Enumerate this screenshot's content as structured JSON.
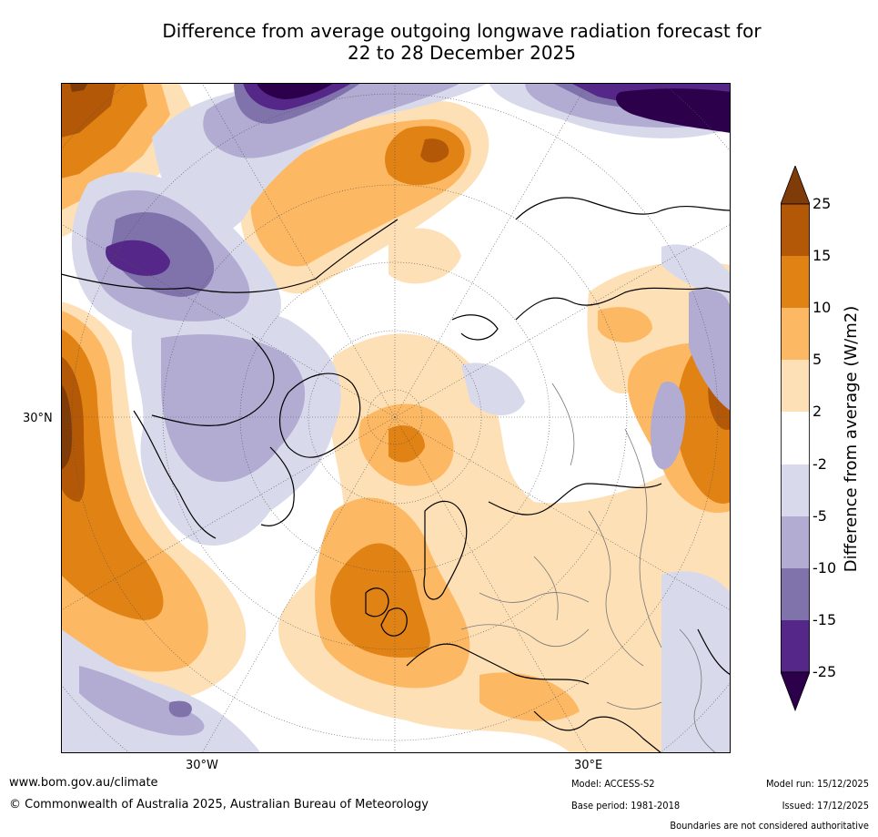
{
  "title_line1": "Difference from average outgoing longwave radiation forecast for",
  "title_line2": "22 to 28 December 2025",
  "map": {
    "labels": {
      "lat_30n": "30°N",
      "lon_30w": "30°W",
      "lon_30e": "30°E"
    }
  },
  "colorbar": {
    "label": "Difference from average (W/m2)",
    "ticks": [
      "25",
      "15",
      "10",
      "5",
      "2",
      "-2",
      "-5",
      "-10",
      "-15",
      "-25"
    ],
    "colors": {
      "over": "#7f3b08",
      "b15_25": "#b35806",
      "b10_15": "#e08214",
      "b5_10": "#fdb863",
      "b2_5": "#fee0b6",
      "neutral": "#ffffff",
      "m2_m5": "#d8daeb",
      "m5_m10": "#b2abd2",
      "m10_m15": "#8073ac",
      "m15_m25": "#542788",
      "under": "#2d004b"
    }
  },
  "footer": {
    "website": "www.bom.gov.au/climate",
    "copyright": "© Commonwealth of Australia 2025, Australian Bureau of Meteorology",
    "model": "Model: ACCESS-S2",
    "base_period": "Base period: 1981-2018",
    "model_run": "Model run: 15/12/2025",
    "issued": "Issued: 17/12/2025",
    "boundaries": "Boundaries are not considered authoritative"
  }
}
